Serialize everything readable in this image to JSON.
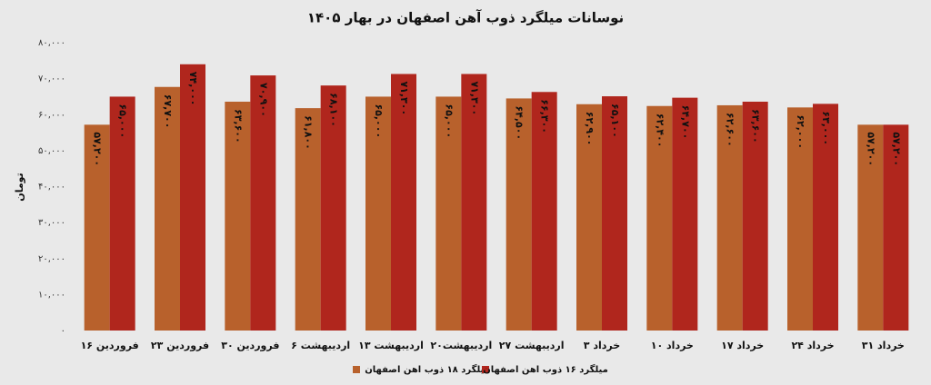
{
  "chart_data": {
    "type": "bar",
    "title": "نوسانات میلگرد ذوب آهن اصفهان در بهار ۱۴۰۵",
    "y_label": "تومان",
    "categories": [
      "۱۶ فروردین",
      "۲۳ فروردین",
      "۳۰ فروردین",
      "۶ اردیبهشت",
      "۱۳ اردیبهشت",
      "۲۰اردیبهشت",
      "۲۷ اردیبهشت",
      "۳ خرداد",
      "۱۰ خرداد",
      "۱۷ خرداد",
      "۲۴ خرداد",
      "۳۱ خرداد"
    ],
    "series": [
      {
        "name": "میلگرد ۱۸ ذوب اهن اصفهان",
        "color": "#b8612c",
        "values": [
          57200,
          67700,
          63600,
          61800,
          65000,
          65000,
          64500,
          62900,
          62400,
          62600,
          62000,
          57200
        ],
        "value_labels": [
          "۵۷,۲۰۰",
          "۶۷,۷۰۰",
          "۶۳,۶۰۰",
          "۶۱,۸۰۰",
          "۶۵,۰۰۰",
          "۶۵,۰۰۰",
          "۶۴,۵۰۰",
          "۶۲,۹۰۰",
          "۶۲,۴۰۰",
          "۶۲,۶۰۰",
          "۶۲,۰۰۰",
          "۵۷,۲۰۰"
        ]
      },
      {
        "name": "میلگرد ۱۶ ذوب اهن اصفهان",
        "color": "#b0261d",
        "values": [
          65000,
          74000,
          70900,
          68100,
          71300,
          71300,
          66300,
          65100,
          64700,
          63600,
          63000,
          57200
        ],
        "value_labels": [
          "۶۵,۰۰۰",
          "۷۴,۰۰۰",
          "۷۰,۹۰۰",
          "۶۸,۱۰۰",
          "۷۱,۳۰۰",
          "۷۱,۳۰۰",
          "۶۶,۳۰۰",
          "۶۵,۱۰۰",
          "۶۴,۷۰۰",
          "۶۳,۶۰۰",
          "۶۳,۰۰۰",
          "۵۷,۲۰۰"
        ]
      }
    ],
    "ylim": [
      0,
      80000
    ],
    "yticks": [
      {
        "value": 0,
        "label": "۰"
      },
      {
        "value": 10000,
        "label": "۱۰,۰۰۰"
      },
      {
        "value": 20000,
        "label": "۲۰,۰۰۰"
      },
      {
        "value": 30000,
        "label": "۳۰,۰۰۰"
      },
      {
        "value": 40000,
        "label": "۴۰,۰۰۰"
      },
      {
        "value": 50000,
        "label": "۵۰,۰۰۰"
      },
      {
        "value": 60000,
        "label": "۶۰,۰۰۰"
      },
      {
        "value": 70000,
        "label": "۷۰,۰۰۰"
      },
      {
        "value": 80000,
        "label": "۸۰,۰۰۰"
      }
    ],
    "grid": false,
    "legend": "bottom"
  }
}
